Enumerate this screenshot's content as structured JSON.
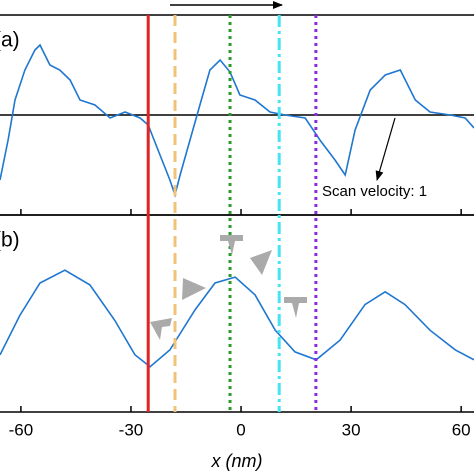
{
  "chart_data": {
    "type": "line",
    "xlabel": "x (nm)",
    "xlim": [
      -65.7,
      63.5
    ],
    "xticks": [
      -60,
      -30,
      0,
      30,
      60
    ],
    "color": "#1f77d0",
    "annotation": "Scan velocity: 1",
    "markers": [
      {
        "x": -25.3,
        "color": "#e02424",
        "style": "solid"
      },
      {
        "x": -18,
        "color": "#f0c27a",
        "style": "dashed"
      },
      {
        "x": -3,
        "color": "#2a9a2a",
        "style": "dotted"
      },
      {
        "x": 10.4,
        "color": "#44e4f4",
        "style": "dashdot"
      },
      {
        "x": 20.4,
        "color": "#8a2be2",
        "style": "dotted"
      }
    ],
    "panels": [
      {
        "label": "(a)",
        "ylim": [
          -1,
          1
        ],
        "x": [
          -65.7,
          -63.5,
          -61.6,
          -58.9,
          -56.2,
          -54.8,
          -52.1,
          -49.4,
          -46.6,
          -43.9,
          -39.8,
          -35.7,
          -31.6,
          -27.5,
          -25.3,
          -22.1,
          -19.4,
          -18,
          -16.6,
          -13.9,
          -11.2,
          -8.5,
          -5.7,
          -3,
          -0.3,
          3.8,
          7.9,
          12,
          17.5,
          21.5,
          25.6,
          28.4,
          31.1,
          35.2,
          39.3,
          43.4,
          47.5,
          51.5,
          57,
          61.1,
          63.5
        ],
        "values": [
          -0.65,
          -0.25,
          0.15,
          0.45,
          0.65,
          0.7,
          0.5,
          0.45,
          0.35,
          0.15,
          0.1,
          -0.03,
          0.03,
          -0.03,
          -0.1,
          -0.4,
          -0.65,
          -0.8,
          -0.6,
          -0.25,
          0.1,
          0.45,
          0.55,
          0.43,
          0.2,
          0.15,
          0.03,
          0,
          -0.03,
          -0.25,
          -0.45,
          -0.6,
          -0.15,
          0.25,
          0.4,
          0.45,
          0.15,
          0.03,
          0,
          -0.03,
          -0.13
        ]
      },
      {
        "label": "(b)",
        "ylim": [
          -1,
          1
        ],
        "x": [
          -65.7,
          -60.3,
          -54.8,
          -48,
          -41.2,
          -34.4,
          -28.9,
          -24.8,
          -19.4,
          -12.5,
          -7.1,
          -1.6,
          3.8,
          9.3,
          14.7,
          20.5,
          27,
          33.8,
          39.3,
          44.7,
          51.5,
          58.4,
          63.5
        ],
        "values": [
          -0.42,
          -0.02,
          0.31,
          0.44,
          0.29,
          -0.07,
          -0.42,
          -0.54,
          -0.37,
          0.04,
          0.31,
          0.37,
          0.19,
          -0.17,
          -0.39,
          -0.47,
          -0.27,
          0.09,
          0.22,
          0.09,
          -0.17,
          -0.37,
          -0.47
        ]
      }
    ]
  }
}
